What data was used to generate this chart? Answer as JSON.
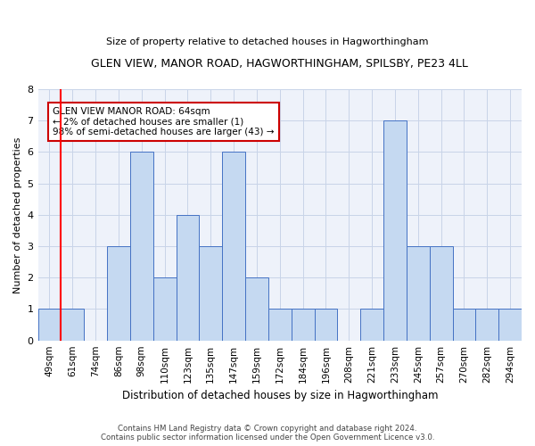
{
  "title": "GLEN VIEW, MANOR ROAD, HAGWORTHINGHAM, SPILSBY, PE23 4LL",
  "subtitle": "Size of property relative to detached houses in Hagworthingham",
  "xlabel": "Distribution of detached houses by size in Hagworthingham",
  "ylabel": "Number of detached properties",
  "categories": [
    "49sqm",
    "61sqm",
    "74sqm",
    "86sqm",
    "98sqm",
    "110sqm",
    "123sqm",
    "135sqm",
    "147sqm",
    "159sqm",
    "172sqm",
    "184sqm",
    "196sqm",
    "208sqm",
    "221sqm",
    "233sqm",
    "245sqm",
    "257sqm",
    "270sqm",
    "282sqm",
    "294sqm"
  ],
  "values": [
    1,
    1,
    0,
    3,
    6,
    2,
    4,
    3,
    6,
    2,
    1,
    1,
    1,
    0,
    1,
    7,
    3,
    3,
    1,
    1,
    1
  ],
  "bar_color": "#c5d9f1",
  "bar_edge_color": "#4472c4",
  "highlight_index": 1,
  "highlight_color": "#ff0000",
  "ylim": [
    0,
    8
  ],
  "yticks": [
    0,
    1,
    2,
    3,
    4,
    5,
    6,
    7,
    8
  ],
  "annotation_text": "GLEN VIEW MANOR ROAD: 64sqm\n← 2% of detached houses are smaller (1)\n98% of semi-detached houses are larger (43) →",
  "annotation_box_color": "#ffffff",
  "annotation_box_edge": "#cc0000",
  "footer_line1": "Contains HM Land Registry data © Crown copyright and database right 2024.",
  "footer_line2": "Contains public sector information licensed under the Open Government Licence v3.0.",
  "grid_color": "#c8d4e8",
  "background_color": "#eef2fa"
}
